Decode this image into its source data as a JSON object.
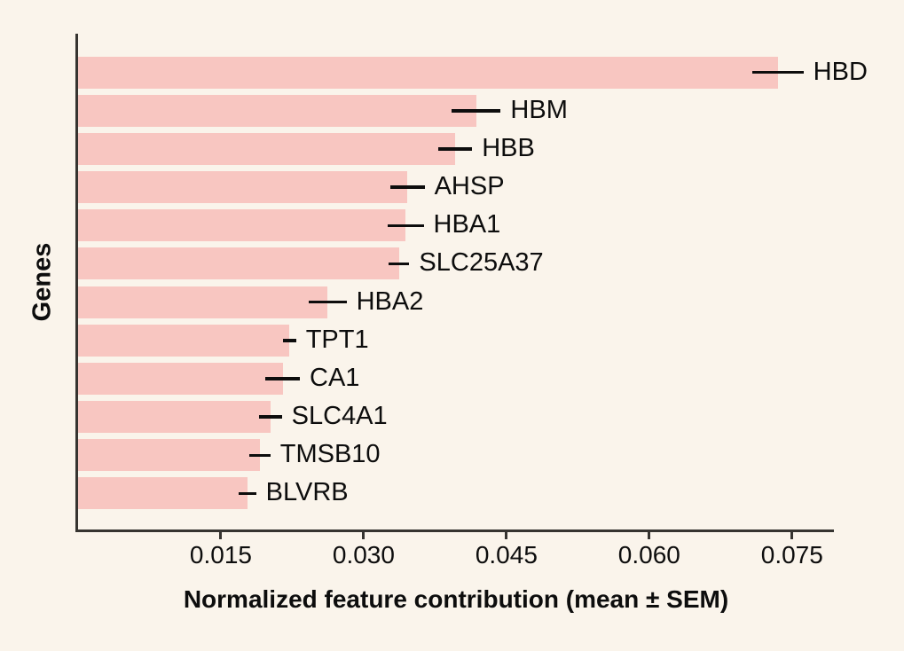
{
  "colors": {
    "background": "#FAF4EB",
    "bar": "#F8C6C1",
    "axis": "#363430",
    "text": "#0D0D0D"
  },
  "chart_data": {
    "type": "bar",
    "orientation": "horizontal",
    "title": "",
    "xlabel": "Normalized feature contribution (mean ± SEM)",
    "ylabel": "Genes",
    "xlim": [
      0,
      0.0794
    ],
    "grid": false,
    "legend": false,
    "categories": [
      "HBD",
      "HBM",
      "HBB",
      "AHSP",
      "HBA1",
      "SLC25A37",
      "HBA2",
      "TPT1",
      "CA1",
      "SLC4A1",
      "TMSB10",
      "BLVRB"
    ],
    "values": [
      0.0735,
      0.0418,
      0.0396,
      0.0346,
      0.0344,
      0.0337,
      0.0262,
      0.0222,
      0.0215,
      0.0202,
      0.0191,
      0.0178
    ],
    "sem": [
      0.0027,
      0.0026,
      0.0018,
      0.0018,
      0.0019,
      0.0011,
      0.002,
      0.0007,
      0.0018,
      0.0012,
      0.0011,
      0.0009
    ],
    "xticks": {
      "values": [
        0.015,
        0.03,
        0.045,
        0.06,
        0.075
      ],
      "labels": [
        "0.015",
        "0.030",
        "0.045",
        "0.060",
        "0.075"
      ]
    }
  }
}
